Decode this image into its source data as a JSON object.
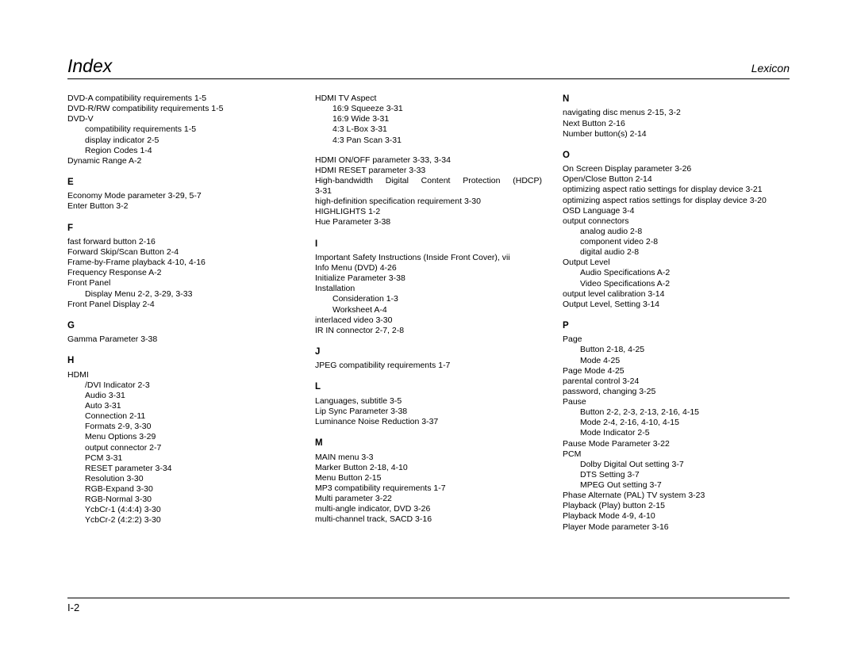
{
  "header": {
    "title": "Index",
    "brand": "Lexicon"
  },
  "footer": {
    "page": "I-2"
  },
  "col1": [
    {
      "t": "entry",
      "v": "DVD-A compatibility requirements 1-5"
    },
    {
      "t": "entry",
      "v": "DVD-R/RW compatibility requirements 1-5"
    },
    {
      "t": "entry",
      "v": "DVD-V"
    },
    {
      "t": "indent1",
      "v": "compatibility requirements 1-5"
    },
    {
      "t": "indent1",
      "v": "display indicator 2-5"
    },
    {
      "t": "indent1",
      "v": "Region Codes 1-4"
    },
    {
      "t": "entry",
      "v": "Dynamic Range A-2"
    },
    {
      "t": "letter",
      "v": "E"
    },
    {
      "t": "entry",
      "v": "Economy Mode parameter 3-29, 5-7"
    },
    {
      "t": "entry",
      "v": "Enter Button 3-2"
    },
    {
      "t": "letter",
      "v": "F"
    },
    {
      "t": "entry",
      "v": "fast forward button 2-16"
    },
    {
      "t": "entry",
      "v": "Forward Skip/Scan Button 2-4"
    },
    {
      "t": "entry",
      "v": "Frame-by-Frame playback 4-10, 4-16"
    },
    {
      "t": "entry",
      "v": "Frequency Response A-2"
    },
    {
      "t": "entry",
      "v": "Front Panel"
    },
    {
      "t": "indent1",
      "v": "Display Menu 2-2, 3-29, 3-33"
    },
    {
      "t": "entry",
      "v": "Front Panel Display 2-4"
    },
    {
      "t": "letter",
      "v": "G"
    },
    {
      "t": "entry",
      "v": "Gamma Parameter 3-38"
    },
    {
      "t": "letter",
      "v": "H"
    },
    {
      "t": "entry",
      "v": "HDMI"
    },
    {
      "t": "indent1",
      "v": "/DVI Indicator 2-3"
    },
    {
      "t": "indent1",
      "v": "Audio 3-31"
    },
    {
      "t": "indent1",
      "v": "Auto 3-31"
    },
    {
      "t": "indent1",
      "v": "Connection 2-11"
    },
    {
      "t": "indent1",
      "v": "Formats 2-9, 3-30"
    },
    {
      "t": "indent1",
      "v": "Menu Options 3-29"
    },
    {
      "t": "indent1",
      "v": "output connector 2-7"
    },
    {
      "t": "indent1",
      "v": "PCM 3-31"
    },
    {
      "t": "indent1",
      "v": "RESET parameter 3-34"
    },
    {
      "t": "indent1",
      "v": "Resolution 3-30"
    },
    {
      "t": "indent1",
      "v": "RGB-Expand 3-30"
    },
    {
      "t": "indent1",
      "v": "RGB-Normal 3-30"
    },
    {
      "t": "indent1",
      "v": "YcbCr-1 (4:4:4) 3-30"
    },
    {
      "t": "indent1",
      "v": "YcbCr-2 (4:2:2) 3-30"
    }
  ],
  "col2": [
    {
      "t": "entry",
      "v": "HDMI TV Aspect"
    },
    {
      "t": "indent1",
      "v": "16:9 Squeeze 3-31"
    },
    {
      "t": "indent1",
      "v": "16:9 Wide 3-31"
    },
    {
      "t": "indent1",
      "v": "4:3 L-Box 3-31"
    },
    {
      "t": "indent1",
      "v": "4:3 Pan Scan 3-31"
    },
    {
      "t": "gap",
      "v": ""
    },
    {
      "t": "entry",
      "v": "HDMI ON/OFF parameter 3-33, 3-34"
    },
    {
      "t": "entry",
      "v": "HDMI RESET parameter 3-33"
    },
    {
      "t": "justify",
      "v": "High-bandwidth Digital Content Protection (HDCP)"
    },
    {
      "t": "entry",
      "v": "3-31"
    },
    {
      "t": "entry",
      "v": "high-definition specification requirement 3-30"
    },
    {
      "t": "entry",
      "v": "HIGHLIGHTS 1-2"
    },
    {
      "t": "entry",
      "v": "Hue Parameter 3-38"
    },
    {
      "t": "letter",
      "v": "I"
    },
    {
      "t": "entry",
      "v": "Important Safety Instructions (Inside Front Cover), vii"
    },
    {
      "t": "entry",
      "v": "Info Menu (DVD) 4-26"
    },
    {
      "t": "entry",
      "v": "Initialize Parameter 3-38"
    },
    {
      "t": "entry",
      "v": "Installation"
    },
    {
      "t": "indent1",
      "v": "Consideration 1-3"
    },
    {
      "t": "indent1",
      "v": "Worksheet A-4"
    },
    {
      "t": "entry",
      "v": "interlaced video 3-30"
    },
    {
      "t": "entry",
      "v": "IR IN connector 2-7, 2-8"
    },
    {
      "t": "letter",
      "v": "J"
    },
    {
      "t": "entry",
      "v": "JPEG compatibility requirements 1-7"
    },
    {
      "t": "letter",
      "v": "L"
    },
    {
      "t": "entry",
      "v": "Languages, subtitle 3-5"
    },
    {
      "t": "entry",
      "v": "Lip Sync Parameter 3-38"
    },
    {
      "t": "entry",
      "v": "Luminance Noise Reduction 3-37"
    },
    {
      "t": "letter",
      "v": "M"
    },
    {
      "t": "entry",
      "v": "MAIN menu 3-3"
    },
    {
      "t": "entry",
      "v": "Marker Button 2-18, 4-10"
    },
    {
      "t": "entry",
      "v": "Menu Button 2-15"
    },
    {
      "t": "entry",
      "v": "MP3 compatibility requirements 1-7"
    },
    {
      "t": "entry",
      "v": "Multi parameter 3-22"
    },
    {
      "t": "entry",
      "v": "multi-angle indicator, DVD 3-26"
    },
    {
      "t": "entry",
      "v": "multi-channel track, SACD 3-16"
    }
  ],
  "col3": [
    {
      "t": "letter0",
      "v": "N"
    },
    {
      "t": "entry",
      "v": "navigating disc menus 2-15, 3-2"
    },
    {
      "t": "entry",
      "v": "Next Button 2-16"
    },
    {
      "t": "entry",
      "v": "Number button(s) 2-14"
    },
    {
      "t": "letter",
      "v": "O"
    },
    {
      "t": "entry",
      "v": "On Screen Display parameter 3-26"
    },
    {
      "t": "entry",
      "v": "Open/Close Button 2-14"
    },
    {
      "t": "entry",
      "v": "optimizing aspect ratio settings for display device 3-21"
    },
    {
      "t": "entry",
      "v": "optimizing aspect ratios settings for display device 3-20"
    },
    {
      "t": "entry",
      "v": "OSD Language 3-4"
    },
    {
      "t": "entry",
      "v": "output connectors"
    },
    {
      "t": "indent1",
      "v": "analog audio 2-8"
    },
    {
      "t": "indent1",
      "v": "component video 2-8"
    },
    {
      "t": "indent1",
      "v": "digital audio 2-8"
    },
    {
      "t": "entry",
      "v": "Output Level"
    },
    {
      "t": "indent1",
      "v": "Audio Specifications A-2"
    },
    {
      "t": "indent1",
      "v": "Video Specifications A-2"
    },
    {
      "t": "entry",
      "v": "output level calibration 3-14"
    },
    {
      "t": "entry",
      "v": "Output Level, Setting 3-14"
    },
    {
      "t": "letter",
      "v": "P"
    },
    {
      "t": "entry",
      "v": "Page"
    },
    {
      "t": "indent1",
      "v": "Button 2-18, 4-25"
    },
    {
      "t": "indent1",
      "v": "Mode 4-25"
    },
    {
      "t": "entry",
      "v": "Page Mode 4-25"
    },
    {
      "t": "entry",
      "v": "parental control 3-24"
    },
    {
      "t": "entry",
      "v": "password, changing 3-25"
    },
    {
      "t": "entry",
      "v": "Pause"
    },
    {
      "t": "indent1",
      "v": "Button 2-2, 2-3, 2-13, 2-16, 4-15"
    },
    {
      "t": "indent1",
      "v": "Mode 2-4, 2-16, 4-10, 4-15"
    },
    {
      "t": "indent1",
      "v": "Mode Indicator 2-5"
    },
    {
      "t": "entry",
      "v": "Pause Mode Parameter 3-22"
    },
    {
      "t": "entry",
      "v": "PCM"
    },
    {
      "t": "indent1",
      "v": "Dolby Digital Out setting 3-7"
    },
    {
      "t": "indent1",
      "v": "DTS Setting 3-7"
    },
    {
      "t": "indent1",
      "v": "MPEG Out setting 3-7"
    },
    {
      "t": "entry",
      "v": "Phase Alternate (PAL) TV system 3-23"
    },
    {
      "t": "entry",
      "v": "Playback (Play) button 2-15"
    },
    {
      "t": "entry",
      "v": "Playback Mode 4-9, 4-10"
    },
    {
      "t": "entry",
      "v": "Player Mode parameter 3-16"
    }
  ]
}
